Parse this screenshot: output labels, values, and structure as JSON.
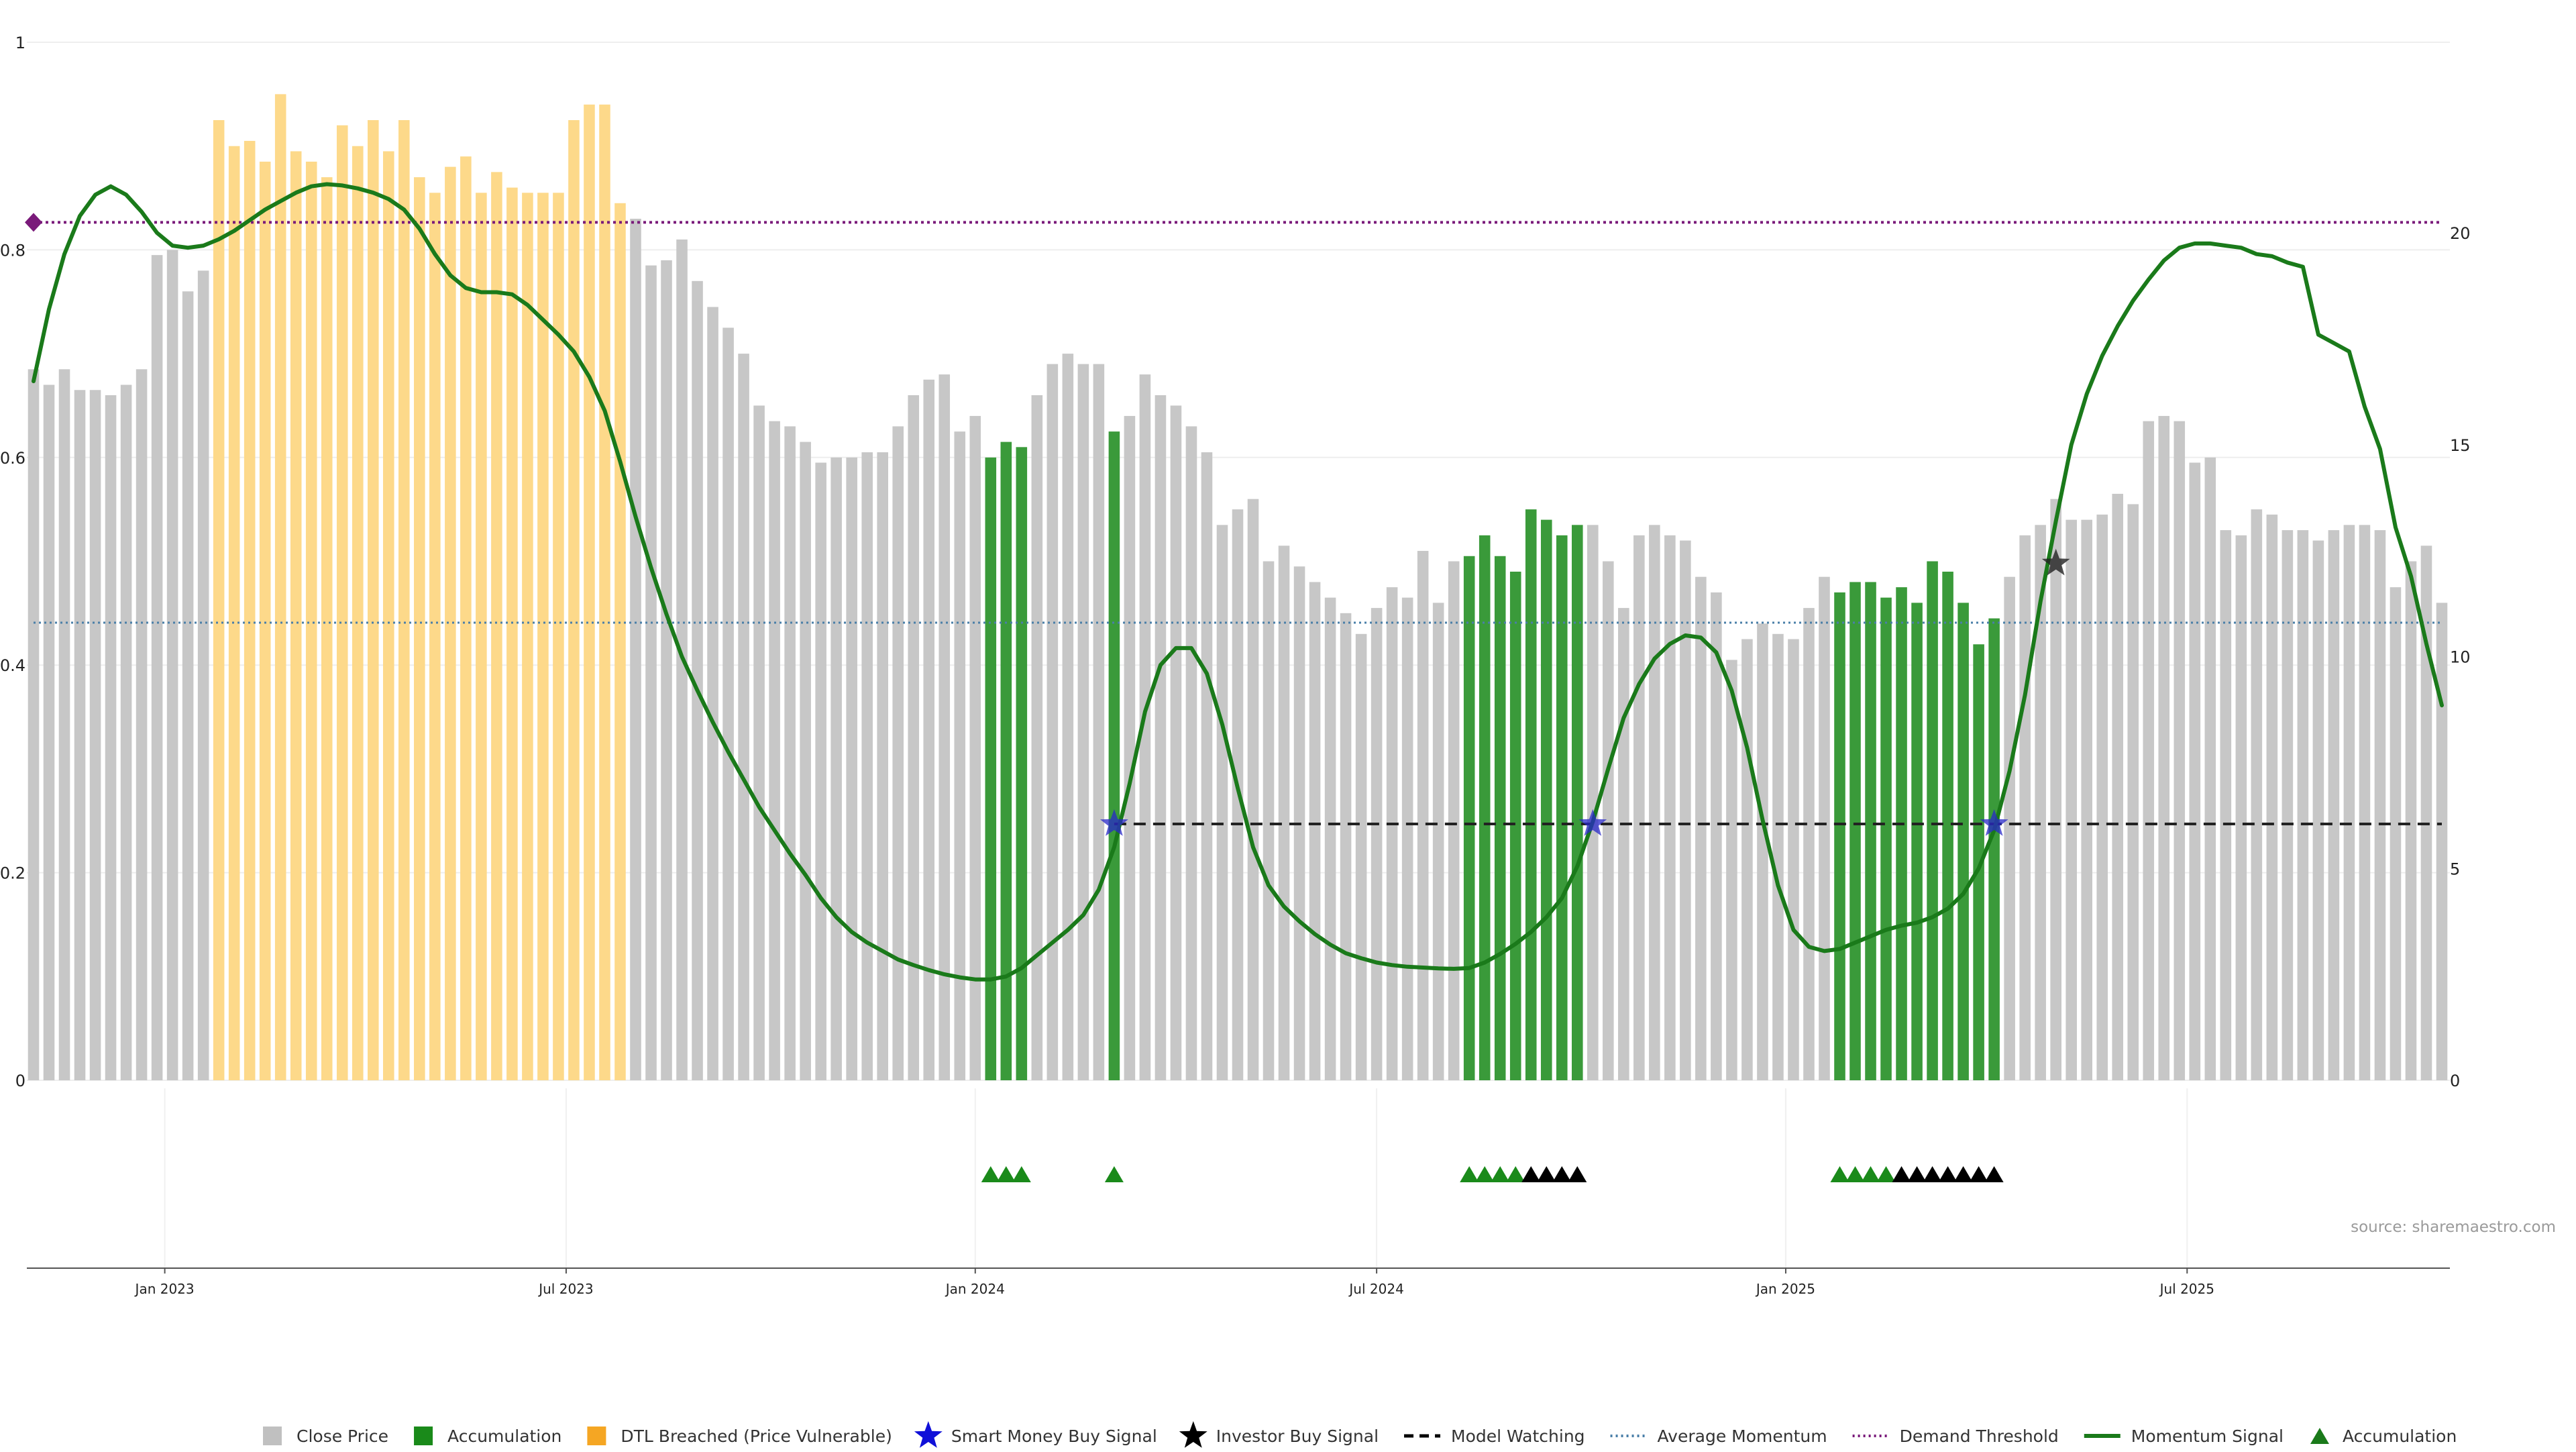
{
  "chart_data": {
    "type": "bar",
    "title": "",
    "source": "source: sharemaestro.com",
    "x_ticks": [
      {
        "label": "Jan 2023",
        "index": 8.5
      },
      {
        "label": "Jul 2023",
        "index": 34.5
      },
      {
        "label": "Jan 2024",
        "index": 61
      },
      {
        "label": "Jul 2024",
        "index": 87
      },
      {
        "label": "Jan 2025",
        "index": 113.5
      },
      {
        "label": "Jul 2025",
        "index": 139.5
      }
    ],
    "left_axis": {
      "ylim": [
        0,
        1
      ],
      "ticks": [
        0,
        0.2,
        0.4,
        0.6,
        0.8,
        1
      ],
      "tick_labels": [
        "0",
        "0.2",
        "0.4",
        "0.6",
        "0.8",
        "1"
      ]
    },
    "right_axis": {
      "ylim": [
        0,
        24.5
      ],
      "ticks": [
        0,
        5,
        10,
        15,
        20
      ],
      "tick_labels": [
        "0",
        "5",
        "10",
        "15",
        "20"
      ]
    },
    "close_price": [
      0.685,
      0.67,
      0.685,
      0.665,
      0.665,
      0.66,
      0.67,
      0.685,
      0.795,
      0.8,
      0.76,
      0.78,
      0.925,
      0.9,
      0.905,
      0.885,
      0.95,
      0.895,
      0.885,
      0.87,
      0.92,
      0.9,
      0.925,
      0.895,
      0.925,
      0.87,
      0.855,
      0.88,
      0.89,
      0.855,
      0.875,
      0.86,
      0.855,
      0.855,
      0.855,
      0.925,
      0.94,
      0.94,
      0.845,
      0.83,
      0.785,
      0.79,
      0.81,
      0.77,
      0.745,
      0.725,
      0.7,
      0.65,
      0.635,
      0.63,
      0.615,
      0.595,
      0.6,
      0.6,
      0.605,
      0.605,
      0.63,
      0.66,
      0.675,
      0.68,
      0.625,
      0.64,
      0.6,
      0.615,
      0.61,
      0.66,
      0.69,
      0.7,
      0.69,
      0.69,
      0.625,
      0.64,
      0.68,
      0.66,
      0.65,
      0.63,
      0.605,
      0.535,
      0.55,
      0.56,
      0.5,
      0.515,
      0.495,
      0.48,
      0.465,
      0.45,
      0.43,
      0.455,
      0.475,
      0.465,
      0.51,
      0.46,
      0.5,
      0.505,
      0.525,
      0.505,
      0.49,
      0.55,
      0.54,
      0.525,
      0.535,
      0.535,
      0.5,
      0.455,
      0.525,
      0.535,
      0.525,
      0.52,
      0.485,
      0.47,
      0.405,
      0.425,
      0.44,
      0.43,
      0.425,
      0.455,
      0.485,
      0.47,
      0.48,
      0.48,
      0.465,
      0.475,
      0.46,
      0.5,
      0.49,
      0.46,
      0.42,
      0.445,
      0.485,
      0.525,
      0.535,
      0.56,
      0.54,
      0.54,
      0.545,
      0.565,
      0.555,
      0.635,
      0.64,
      0.635,
      0.595,
      0.6,
      0.53,
      0.525,
      0.55,
      0.545,
      0.53,
      0.53,
      0.52,
      0.53,
      0.535,
      0.535,
      0.53,
      0.475,
      0.5,
      0.515,
      0.46
    ],
    "dtl_breached_range": [
      12,
      38
    ],
    "accumulation_ranges": [
      [
        62,
        64
      ],
      [
        70,
        70
      ],
      [
        93,
        100
      ],
      [
        117,
        127
      ]
    ],
    "momentum_signal": [
      [
        0,
        16.5
      ],
      [
        1,
        18.2
      ],
      [
        2,
        19.5
      ],
      [
        3,
        20.4
      ],
      [
        4,
        20.9
      ],
      [
        5,
        21.1
      ],
      [
        6,
        20.9
      ],
      [
        7,
        20.5
      ],
      [
        8,
        20.0
      ],
      [
        9,
        19.7
      ],
      [
        10,
        19.65
      ],
      [
        11,
        19.7
      ],
      [
        12,
        19.85
      ],
      [
        13,
        20.05
      ],
      [
        14,
        20.3
      ],
      [
        15,
        20.55
      ],
      [
        16,
        20.75
      ],
      [
        17,
        20.95
      ],
      [
        18,
        21.1
      ],
      [
        19,
        21.15
      ],
      [
        20,
        21.12
      ],
      [
        21,
        21.05
      ],
      [
        22,
        20.95
      ],
      [
        23,
        20.8
      ],
      [
        24,
        20.55
      ],
      [
        25,
        20.1
      ],
      [
        26,
        19.5
      ],
      [
        27,
        19.0
      ],
      [
        28,
        18.7
      ],
      [
        29,
        18.6
      ],
      [
        30,
        18.6
      ],
      [
        31,
        18.55
      ],
      [
        32,
        18.3
      ],
      [
        33,
        17.95
      ],
      [
        34,
        17.6
      ],
      [
        35,
        17.2
      ],
      [
        36,
        16.6
      ],
      [
        37,
        15.8
      ],
      [
        38,
        14.6
      ],
      [
        39,
        13.3
      ],
      [
        40,
        12.1
      ],
      [
        41,
        11.0
      ],
      [
        42,
        10.0
      ],
      [
        43,
        9.2
      ],
      [
        44,
        8.45
      ],
      [
        45,
        7.75
      ],
      [
        46,
        7.1
      ],
      [
        47,
        6.45
      ],
      [
        48,
        5.9
      ],
      [
        49,
        5.35
      ],
      [
        50,
        4.85
      ],
      [
        51,
        4.3
      ],
      [
        52,
        3.85
      ],
      [
        53,
        3.5
      ],
      [
        54,
        3.25
      ],
      [
        55,
        3.05
      ],
      [
        56,
        2.85
      ],
      [
        57,
        2.72
      ],
      [
        58,
        2.6
      ],
      [
        59,
        2.5
      ],
      [
        60,
        2.43
      ],
      [
        61,
        2.38
      ],
      [
        62,
        2.38
      ],
      [
        63,
        2.45
      ],
      [
        64,
        2.65
      ],
      [
        65,
        2.95
      ],
      [
        66,
        3.25
      ],
      [
        67,
        3.55
      ],
      [
        68,
        3.9
      ],
      [
        69,
        4.5
      ],
      [
        70,
        5.5
      ],
      [
        71,
        7.0
      ],
      [
        72,
        8.7
      ],
      [
        73,
        9.8
      ],
      [
        74,
        10.2
      ],
      [
        75,
        10.2
      ],
      [
        76,
        9.6
      ],
      [
        77,
        8.4
      ],
      [
        78,
        6.9
      ],
      [
        79,
        5.5
      ],
      [
        80,
        4.6
      ],
      [
        81,
        4.1
      ],
      [
        82,
        3.75
      ],
      [
        83,
        3.45
      ],
      [
        84,
        3.2
      ],
      [
        85,
        3.0
      ],
      [
        86,
        2.88
      ],
      [
        87,
        2.78
      ],
      [
        88,
        2.72
      ],
      [
        89,
        2.68
      ],
      [
        90,
        2.66
      ],
      [
        91,
        2.64
      ],
      [
        92,
        2.63
      ],
      [
        93,
        2.65
      ],
      [
        94,
        2.78
      ],
      [
        95,
        2.98
      ],
      [
        96,
        3.22
      ],
      [
        97,
        3.5
      ],
      [
        98,
        3.85
      ],
      [
        99,
        4.3
      ],
      [
        100,
        5.05
      ],
      [
        101,
        6.1
      ],
      [
        102,
        7.35
      ],
      [
        103,
        8.55
      ],
      [
        104,
        9.35
      ],
      [
        105,
        9.95
      ],
      [
        106,
        10.3
      ],
      [
        107,
        10.5
      ],
      [
        108,
        10.45
      ],
      [
        109,
        10.1
      ],
      [
        110,
        9.2
      ],
      [
        111,
        7.85
      ],
      [
        112,
        6.15
      ],
      [
        113,
        4.6
      ],
      [
        114,
        3.55
      ],
      [
        115,
        3.15
      ],
      [
        116,
        3.05
      ],
      [
        117,
        3.1
      ],
      [
        118,
        3.25
      ],
      [
        119,
        3.4
      ],
      [
        120,
        3.55
      ],
      [
        121,
        3.65
      ],
      [
        122,
        3.72
      ],
      [
        123,
        3.85
      ],
      [
        124,
        4.05
      ],
      [
        125,
        4.4
      ],
      [
        126,
        5.0
      ],
      [
        127,
        5.9
      ],
      [
        128,
        7.3
      ],
      [
        129,
        9.1
      ],
      [
        130,
        11.3
      ],
      [
        131,
        13.2
      ],
      [
        132,
        15.0
      ],
      [
        133,
        16.2
      ],
      [
        134,
        17.1
      ],
      [
        135,
        17.8
      ],
      [
        136,
        18.4
      ],
      [
        137,
        18.9
      ],
      [
        138,
        19.35
      ],
      [
        139,
        19.65
      ],
      [
        140,
        19.75
      ],
      [
        141,
        19.75
      ],
      [
        142,
        19.7
      ],
      [
        143,
        19.65
      ],
      [
        144,
        19.5
      ],
      [
        145,
        19.45
      ],
      [
        146,
        19.3
      ],
      [
        147,
        19.2
      ],
      [
        148,
        17.6
      ],
      [
        149,
        17.4
      ],
      [
        150,
        17.2
      ],
      [
        151,
        15.9
      ],
      [
        152,
        14.9
      ],
      [
        153,
        13.05
      ],
      [
        154,
        11.9
      ],
      [
        155,
        10.3
      ],
      [
        156,
        8.85
      ]
    ],
    "average_momentum": 10.8,
    "demand_threshold": 20.25,
    "model_watching_level": 6.05,
    "model_watching_start": 70,
    "smart_money_signals": [
      [
        70,
        6.05
      ],
      [
        101,
        6.05
      ],
      [
        127,
        6.05
      ]
    ],
    "investor_buy_signals": [
      [
        131,
        12.2
      ]
    ],
    "demand_marker_index": 0,
    "accumulation_triangles_green": [
      62,
      63,
      64,
      70,
      93,
      94,
      95,
      96,
      117,
      118,
      119,
      120
    ],
    "accumulation_triangles_black": [
      97,
      98,
      99,
      100,
      121,
      122,
      123,
      124,
      125,
      126,
      127
    ],
    "legend": [
      {
        "label": "Close Price",
        "kind": "square",
        "color": "#c0c0c0"
      },
      {
        "label": "Accumulation",
        "kind": "square",
        "color": "#1a8a1a"
      },
      {
        "label": "DTL Breached (Price Vulnerable)",
        "kind": "square",
        "color": "#f5a623"
      },
      {
        "label": "Smart Money Buy Signal",
        "kind": "star",
        "color": "#1010d8"
      },
      {
        "label": "Investor Buy Signal",
        "kind": "star",
        "color": "#000000"
      },
      {
        "label": "Model Watching",
        "kind": "dash",
        "color": "#000000"
      },
      {
        "label": "Average Momentum",
        "kind": "dot",
        "color": "#4a7fa8"
      },
      {
        "label": "Demand Threshold",
        "kind": "dot",
        "color": "#7a1a7a"
      },
      {
        "label": "Momentum Signal",
        "kind": "line",
        "color": "#1a7a1a"
      },
      {
        "label": "Accumulation",
        "kind": "triangle",
        "color": "#1a7a1a"
      }
    ]
  }
}
